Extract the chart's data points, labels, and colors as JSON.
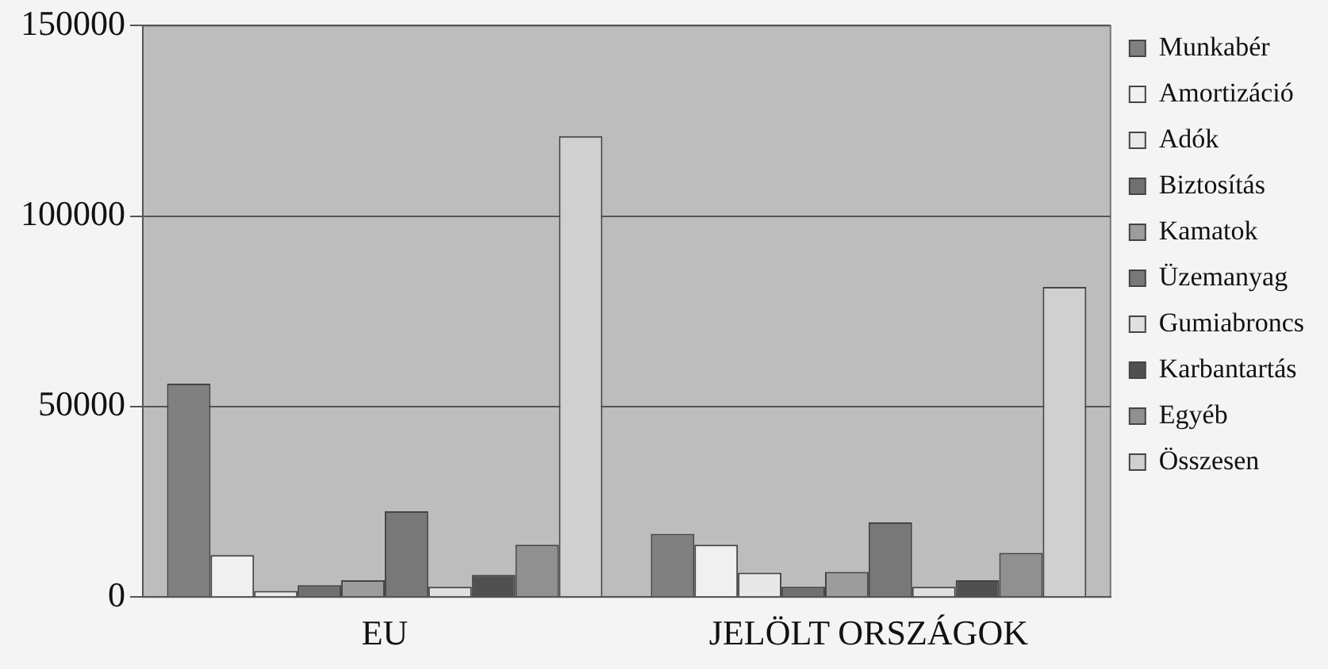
{
  "chart_data": {
    "type": "bar",
    "categories": [
      "EU",
      "JELÖLT ORSZÁGOK"
    ],
    "series": [
      {
        "name": "Munkabér",
        "color": "#808080",
        "values": [
          56000,
          16600
        ]
      },
      {
        "name": "Amortizáció",
        "color": "#f0f0f0",
        "values": [
          11000,
          13700
        ]
      },
      {
        "name": "Adók",
        "color": "#e8e8e8",
        "values": [
          1600,
          6400
        ]
      },
      {
        "name": "Biztosítás",
        "color": "#707070",
        "values": [
          3100,
          2700
        ]
      },
      {
        "name": "Kamatok",
        "color": "#9c9c9c",
        "values": [
          4400,
          6600
        ]
      },
      {
        "name": "Üzemanyag",
        "color": "#787878",
        "values": [
          22500,
          19600
        ]
      },
      {
        "name": "Gumiabroncs",
        "color": "#e0e0e0",
        "values": [
          2700,
          2700
        ]
      },
      {
        "name": "Karbantartás",
        "color": "#505050",
        "values": [
          5800,
          4400
        ]
      },
      {
        "name": "Egyéb",
        "color": "#909090",
        "values": [
          13700,
          11600
        ]
      },
      {
        "name": "Összesen",
        "color": "#d0d0d0",
        "values": [
          121000,
          81400
        ]
      }
    ],
    "ylim": [
      0,
      150000
    ],
    "yticks": [
      0,
      50000,
      100000,
      150000
    ],
    "grid": "y",
    "legend": "right"
  }
}
